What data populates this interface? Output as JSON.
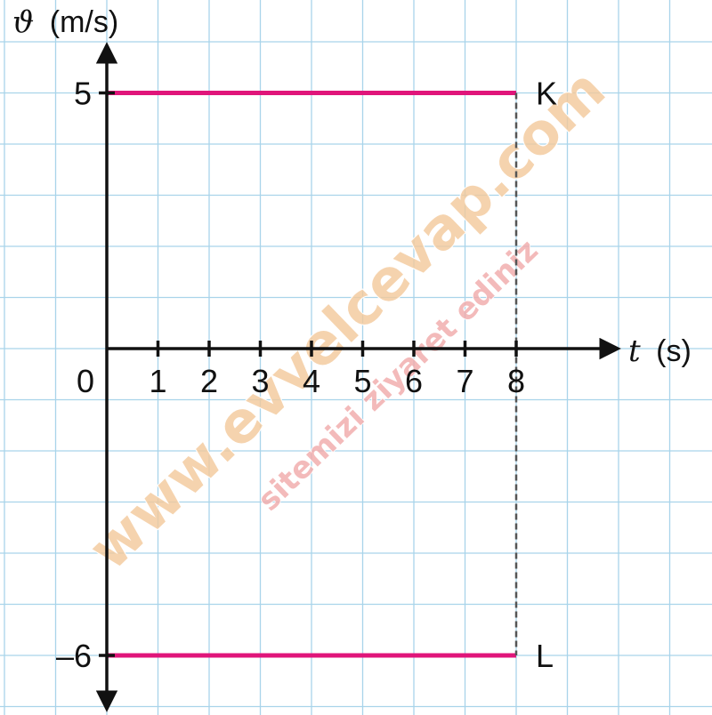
{
  "chart_data": {
    "type": "line",
    "title": "",
    "ylabel_symbol": "ϑ",
    "ylabel_unit": "(m/s)",
    "xlabel_symbol": "t",
    "xlabel_unit": "(s)",
    "origin_label": "0",
    "x_ticks": [
      "1",
      "2",
      "3",
      "4",
      "5",
      "6",
      "7",
      "8"
    ],
    "y_ticks": [
      {
        "value": 5,
        "label": "5"
      },
      {
        "value": -6,
        "label": "–6"
      }
    ],
    "xlim": [
      0,
      10
    ],
    "ylim": [
      -7,
      6
    ],
    "grid": true,
    "series": [
      {
        "name": "K",
        "x": [
          0,
          8
        ],
        "y": [
          5,
          5
        ],
        "color": "#e0157a"
      },
      {
        "name": "L",
        "x": [
          0,
          8
        ],
        "y": [
          -6,
          -6
        ],
        "color": "#e0157a"
      }
    ],
    "dashed_vertical": {
      "x": 8,
      "y": [
        -6,
        5
      ]
    }
  },
  "watermark": {
    "main": "www.evvelcevap.com",
    "sub": "sitemizi ziyaret ediniz",
    "main_color": "#f2c89a",
    "sub_color": "#f0a9a9"
  },
  "colors": {
    "grid": "#a9d4ea",
    "axis": "#111111",
    "series": "#e0157a",
    "dashed": "#555555"
  }
}
